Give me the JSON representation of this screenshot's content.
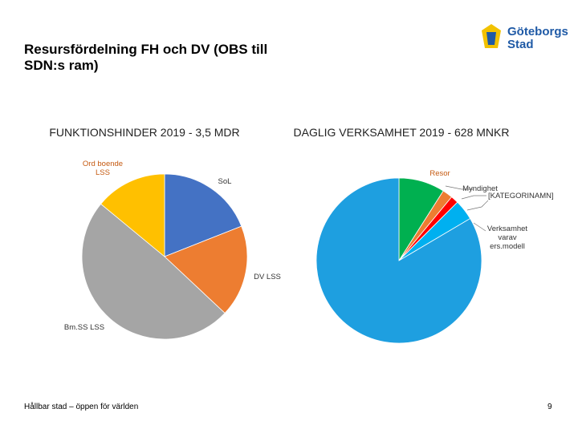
{
  "title": "Resursfördelning FH och DV (OBS till SDN:s ram)",
  "logo": [
    "Göteborgs",
    "Stad"
  ],
  "chart_data": [
    {
      "type": "pie",
      "title": "FUNKTIONSHINDER 2019 - 3,5 MDR",
      "categories": [
        "SoL",
        "DV LSS",
        "Bm.SS LSS",
        "Ord boende LSS"
      ],
      "values": [
        19,
        18,
        49,
        14
      ],
      "colors": [
        "#4472c4",
        "#ed7d31",
        "#a5a5a5",
        "#ffc000"
      ]
    },
    {
      "type": "pie",
      "title": "DAGLIG VERKSAMHET 2019 - 628 MNKR",
      "categories": [
        "Resor",
        "Myndighet",
        "[KATEGORINAMN]",
        "Verksamhet varav ers.modell",
        null
      ],
      "values": [
        9,
        2,
        1.5,
        4,
        83.5
      ],
      "colors": [
        "#00b050",
        "#ed7d31",
        "#ff0000",
        "#00b0f0",
        "#1e9fe0"
      ]
    }
  ],
  "footer": "Hållbar stad – öppen för världen",
  "page_number": "9"
}
